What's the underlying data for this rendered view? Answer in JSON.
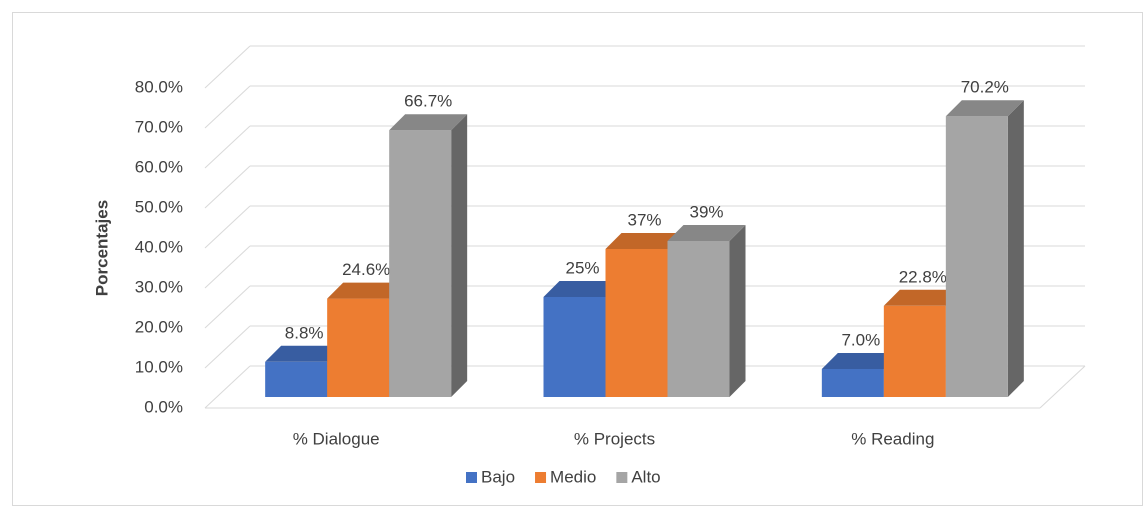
{
  "chart_data": {
    "type": "bar3d",
    "y_axis_label": "Porcentajes",
    "categories": [
      "% Dialogue",
      "% Projects",
      "% Reading"
    ],
    "series": [
      {
        "name": "Bajo",
        "color": "#4472c4",
        "values": [
          8.8,
          25,
          7.0
        ],
        "value_labels": [
          "8.8%",
          "25%",
          "7.0%"
        ]
      },
      {
        "name": "Medio",
        "color": "#ed7d31",
        "values": [
          24.6,
          37,
          22.8
        ],
        "value_labels": [
          "24.6%",
          "37%",
          "22.8%"
        ]
      },
      {
        "name": "Alto",
        "color": "#a5a5a5",
        "values": [
          66.7,
          39,
          70.2
        ],
        "value_labels": [
          "66.7%",
          "39%",
          "70.2%"
        ]
      }
    ],
    "ylim": [
      0,
      80
    ],
    "yticks": [
      {
        "value": 0,
        "label": "0.0%"
      },
      {
        "value": 10,
        "label": "10.0%"
      },
      {
        "value": 20,
        "label": "20.0%"
      },
      {
        "value": 30,
        "label": "30.0%"
      },
      {
        "value": 40,
        "label": "40.0%"
      },
      {
        "value": 50,
        "label": "50.0%"
      },
      {
        "value": 60,
        "label": "60.0%"
      },
      {
        "value": 70,
        "label": "70.0%"
      },
      {
        "value": 80,
        "label": "80.0%"
      }
    ],
    "grid": true,
    "legend": "bottom"
  }
}
